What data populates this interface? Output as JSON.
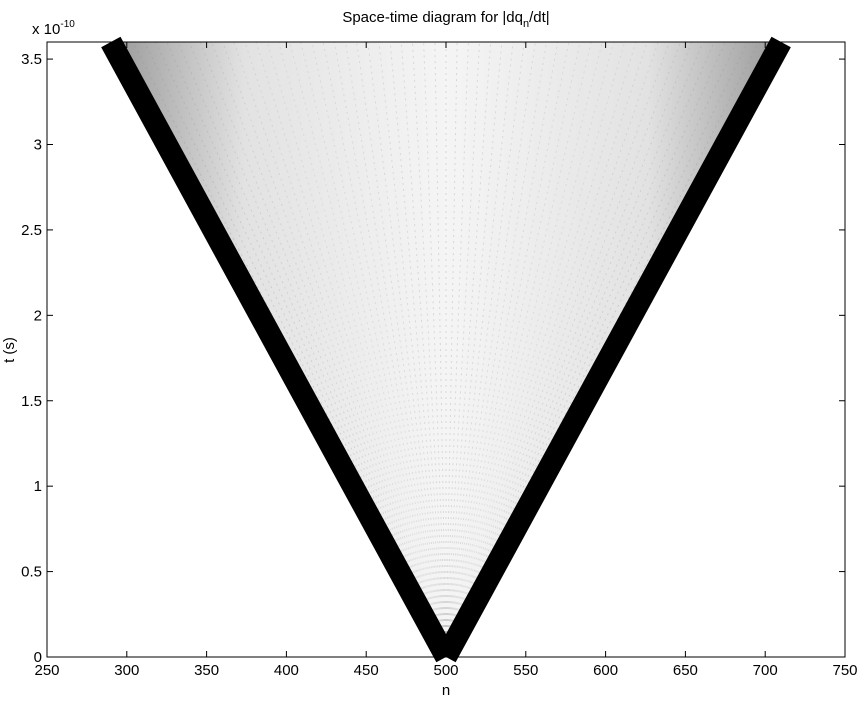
{
  "chart_data": {
    "type": "spacetime",
    "title_parts": [
      "Space-time diagram for |dq",
      "n",
      "/dt|"
    ],
    "xlabel": "n",
    "ylabel": "t (s)",
    "y_multiplier_parts": [
      "x 10",
      "-10"
    ],
    "xlim": [
      250,
      750
    ],
    "xticks": [
      250,
      300,
      350,
      400,
      450,
      500,
      550,
      600,
      650,
      700,
      750
    ],
    "ylim": [
      0,
      3.6
    ],
    "yticks": [
      0,
      0.5,
      1,
      1.5,
      2,
      2.5,
      3,
      3.5
    ],
    "wavefronts": [
      {
        "n": [
          500,
          290
        ],
        "t": [
          0,
          3.6
        ]
      },
      {
        "n": [
          500,
          710
        ],
        "t": [
          0,
          3.6
        ]
      }
    ],
    "color": "#000000"
  }
}
